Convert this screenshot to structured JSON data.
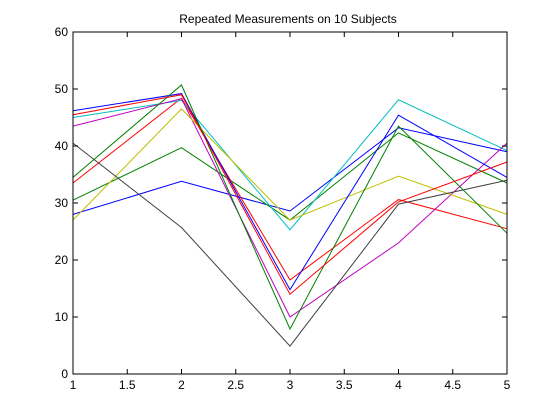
{
  "chart_data": {
    "type": "line",
    "title": "Repeated Measurements on 10 Subjects",
    "xlabel": "",
    "ylabel": "",
    "x": [
      1,
      2,
      3,
      4,
      5
    ],
    "xlim": [
      1,
      5
    ],
    "ylim": [
      0,
      60
    ],
    "x_ticks": [
      "1",
      "1.5",
      "2",
      "2.5",
      "3",
      "3.5",
      "4",
      "4.5",
      "5"
    ],
    "y_ticks": [
      "0",
      "10",
      "20",
      "30",
      "40",
      "50",
      "60"
    ],
    "grid": false,
    "legend": "none",
    "series": [
      {
        "color": "#0000ff",
        "values": [
          28.0,
          33.8,
          28.6,
          43.2,
          39.0
        ]
      },
      {
        "color": "#008000",
        "values": [
          30.5,
          39.7,
          27.0,
          42.3,
          33.5
        ]
      },
      {
        "color": "#ff0000",
        "values": [
          33.5,
          48.4,
          16.5,
          30.6,
          25.5
        ]
      },
      {
        "color": "#00bfbf",
        "values": [
          45.0,
          48.0,
          25.3,
          48.1,
          39.2
        ]
      },
      {
        "color": "#bf00bf",
        "values": [
          43.5,
          48.3,
          10.0,
          23.0,
          40.5
        ]
      },
      {
        "color": "#bfbf00",
        "values": [
          27.0,
          46.5,
          27.0,
          34.7,
          28.0
        ]
      },
      {
        "color": "#404040",
        "values": [
          40.5,
          25.7,
          4.9,
          29.8,
          34.0
        ]
      },
      {
        "color": "#0000ff",
        "values": [
          46.2,
          49.2,
          14.8,
          45.4,
          34.5
        ]
      },
      {
        "color": "#008000",
        "values": [
          34.5,
          50.7,
          7.9,
          43.5,
          24.7
        ]
      },
      {
        "color": "#ff0000",
        "values": [
          45.5,
          49.0,
          14.0,
          30.2,
          37.2
        ]
      }
    ]
  }
}
